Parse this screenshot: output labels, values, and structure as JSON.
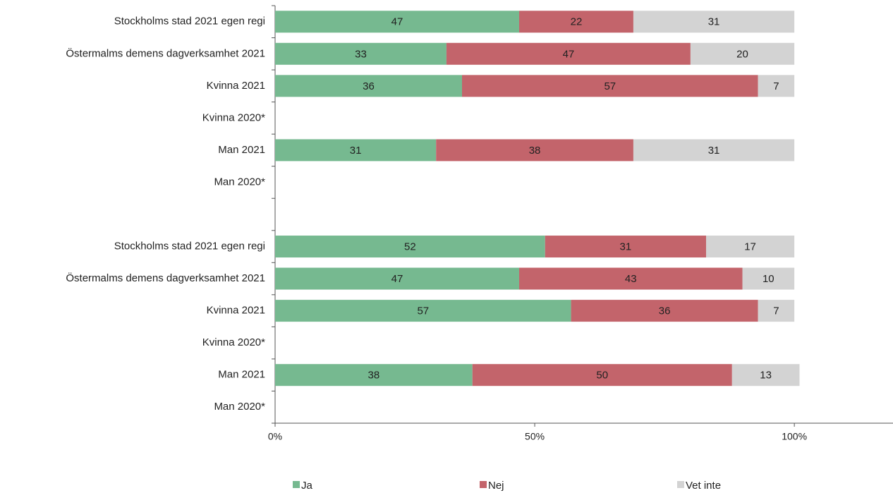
{
  "chart_data": {
    "type": "stacked-barh",
    "categories": [
      "Stockholms stad 2021 egen regi",
      "Östermalms demens dagverksamhet 2021",
      "Kvinna 2021",
      "Kvinna 2020*",
      "Man 2021",
      "Man 2020*",
      null,
      "Stockholms stad 2021 egen regi",
      "Östermalms demens dagverksamhet 2021",
      "Kvinna 2021",
      "Kvinna 2020*",
      "Man 2021",
      "Man 2020*"
    ],
    "series": [
      {
        "name": "Ja",
        "color": "#76b990",
        "values": [
          47,
          33,
          36,
          null,
          31,
          null,
          null,
          52,
          47,
          57,
          null,
          38,
          null
        ]
      },
      {
        "name": "Nej",
        "color": "#c3646b",
        "values": [
          22,
          47,
          57,
          null,
          38,
          null,
          null,
          31,
          43,
          36,
          null,
          50,
          null
        ]
      },
      {
        "name": "Vet inte",
        "color": "#d3d3d3",
        "values": [
          31,
          20,
          7,
          null,
          31,
          null,
          null,
          17,
          10,
          7,
          null,
          13,
          null
        ]
      }
    ],
    "xlim": [
      0,
      119
    ],
    "xticks": [
      {
        "value": 0,
        "label": "0%"
      },
      {
        "value": 50,
        "label": "50%"
      },
      {
        "value": 100,
        "label": "100%"
      }
    ],
    "legend": "bottom"
  }
}
